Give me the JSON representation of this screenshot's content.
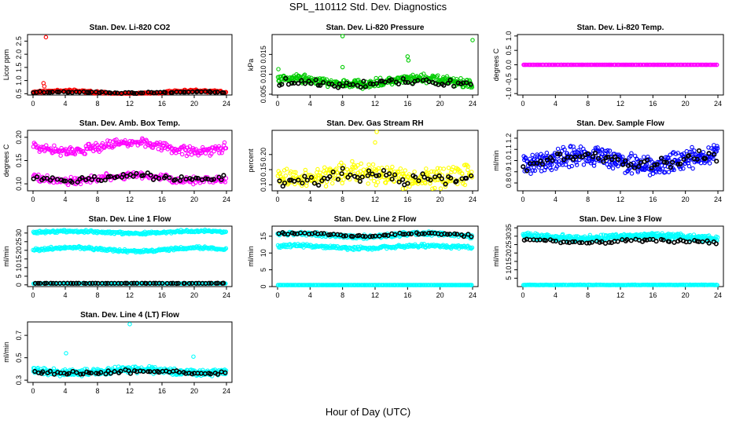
{
  "page_title": "SPL_110112  Std. Dev. Diagnostics",
  "x_axis_label": "Hour of Day (UTC)",
  "colors": {
    "black": "#000000",
    "red": "#ff0000",
    "green": "#00cc00",
    "magenta": "#ff00ff",
    "yellow": "#ffff00",
    "blue": "#0000ff",
    "cyan": "#00ffff"
  },
  "chart_data": [
    {
      "type": "scatter",
      "title": "Stan. Dev. Li-820 CO2",
      "ylabel": "Licor ppm",
      "xlim": [
        0,
        24
      ],
      "ylim": [
        0.45,
        2.75
      ],
      "xticks": [
        0,
        4,
        8,
        12,
        16,
        20,
        24
      ],
      "xtick_labels": [
        "0",
        "4",
        "8",
        "12",
        "16",
        "20",
        "24"
      ],
      "yticks": [
        0.5,
        1.0,
        1.5,
        2.0,
        2.5
      ],
      "ytick_labels": [
        "0.5",
        "1.0",
        "1.5",
        "2.0",
        "2.5"
      ],
      "series": [
        {
          "name": "all",
          "color": "red",
          "dense": {
            "n": 260,
            "base": 0.55,
            "amp": 0.06,
            "spread": 0.05
          },
          "points": [
            [
              1.2,
              0.6
            ],
            [
              1.3,
              0.9
            ],
            [
              1.4,
              0.78
            ],
            [
              1.6,
              2.65
            ],
            [
              1.8,
              0.58
            ]
          ]
        },
        {
          "name": "hourly",
          "color": "black",
          "dense": {
            "n": 60,
            "base": 0.55,
            "amp": 0.02,
            "spread": 0.03
          }
        }
      ]
    },
    {
      "type": "scatter",
      "title": "Stan. Dev. Li-820 Pressure",
      "ylabel": "kPa",
      "xlim": [
        0,
        24
      ],
      "ylim": [
        0.0048,
        0.02
      ],
      "xticks": [
        0,
        4,
        8,
        12,
        16,
        20,
        24
      ],
      "xtick_labels": [
        "0",
        "4",
        "8",
        "12",
        "16",
        "20",
        "24"
      ],
      "yticks": [
        0.005,
        0.01,
        0.015
      ],
      "ytick_labels": [
        "0.005",
        "0.010",
        "0.015"
      ],
      "series": [
        {
          "name": "all",
          "color": "green",
          "dense": {
            "n": 340,
            "base": 0.0082,
            "amp": 0.0007,
            "spread": 0.0013
          },
          "points": [
            [
              0.1,
              0.0113
            ],
            [
              8.0,
              0.0196
            ],
            [
              8.0,
              0.0118
            ],
            [
              16.0,
              0.0145
            ],
            [
              16.1,
              0.0135
            ],
            [
              24.0,
              0.0186
            ]
          ]
        },
        {
          "name": "hourly",
          "color": "black",
          "dense": {
            "n": 60,
            "base": 0.0078,
            "amp": 0.0004,
            "spread": 0.001
          }
        }
      ]
    },
    {
      "type": "scatter",
      "title": "Stan. Dev. Li-820 Temp.",
      "ylabel": "degrees C",
      "xlim": [
        0,
        24
      ],
      "ylim": [
        -1.05,
        1.05
      ],
      "xticks": [
        0,
        4,
        8,
        12,
        16,
        20,
        24
      ],
      "xtick_labels": [
        "0",
        "4",
        "8",
        "12",
        "16",
        "20",
        "24"
      ],
      "yticks": [
        -1.0,
        -0.5,
        0.0,
        0.5,
        1.0
      ],
      "ytick_labels": [
        "-1.0",
        "-0.5",
        "0.0",
        "0.5",
        "1.0"
      ],
      "series": [
        {
          "name": "all",
          "color": "magenta",
          "dense": {
            "n": 180,
            "base": 0.0,
            "amp": 0.0,
            "spread": 0.0
          }
        },
        {
          "name": "hourly",
          "color": "black",
          "dense": {
            "n": 0,
            "base": 0.0,
            "amp": 0.0,
            "spread": 0.0
          }
        }
      ]
    },
    {
      "type": "scatter",
      "title": "Stan. Dev. Amb. Box Temp.",
      "ylabel": "degrees C",
      "xlim": [
        0,
        24
      ],
      "ylim": [
        0.085,
        0.215
      ],
      "xticks": [
        0,
        4,
        8,
        12,
        16,
        20,
        24
      ],
      "xtick_labels": [
        "0",
        "4",
        "8",
        "12",
        "16",
        "20",
        "24"
      ],
      "yticks": [
        0.1,
        0.15,
        0.2
      ],
      "ytick_labels": [
        "0.10",
        "0.15",
        "0.20"
      ],
      "series": [
        {
          "name": "upper",
          "color": "magenta",
          "dense": {
            "n": 240,
            "base": 0.18,
            "amp": 0.01,
            "spread": 0.012
          }
        },
        {
          "name": "lower",
          "color": "magenta",
          "dense": {
            "n": 200,
            "base": 0.112,
            "amp": 0.006,
            "spread": 0.01
          }
        },
        {
          "name": "hourly",
          "color": "black",
          "dense": {
            "n": 60,
            "base": 0.113,
            "amp": 0.005,
            "spread": 0.008
          }
        }
      ]
    },
    {
      "type": "scatter",
      "title": "Stan. Dev. Gas Stream RH",
      "ylabel": "percent",
      "xlim": [
        0,
        24
      ],
      "ylim": [
        0.08,
        0.28
      ],
      "xticks": [
        0,
        4,
        8,
        12,
        16,
        20,
        24
      ],
      "xtick_labels": [
        "0",
        "4",
        "8",
        "12",
        "16",
        "20",
        "24"
      ],
      "yticks": [
        0.1,
        0.15,
        0.2
      ],
      "ytick_labels": [
        "0.10",
        "0.15",
        "0.20"
      ],
      "series": [
        {
          "name": "all",
          "color": "yellow",
          "dense": {
            "n": 300,
            "base": 0.13,
            "amp": 0.012,
            "spread": 0.04
          },
          "points": [
            [
              12.2,
              0.275
            ],
            [
              12.0,
              0.24
            ]
          ]
        },
        {
          "name": "hourly",
          "color": "black",
          "dense": {
            "n": 60,
            "base": 0.12,
            "amp": 0.01,
            "spread": 0.03
          }
        }
      ]
    },
    {
      "type": "scatter",
      "title": "Stan. Dev. Sample Flow",
      "ylabel": "ml/min",
      "xlim": [
        0,
        24
      ],
      "ylim": [
        0.73,
        1.27
      ],
      "xticks": [
        0,
        4,
        8,
        12,
        16,
        20,
        24
      ],
      "xtick_labels": [
        "0",
        "4",
        "8",
        "12",
        "16",
        "20",
        "24"
      ],
      "yticks": [
        0.8,
        0.9,
        1.0,
        1.1,
        1.2
      ],
      "ytick_labels": [
        "0.8",
        "0.9",
        "1.0",
        "1.1",
        "1.2"
      ],
      "series": [
        {
          "name": "all",
          "color": "blue",
          "dense": {
            "n": 380,
            "base": 1.0,
            "amp": 0.05,
            "spread": 0.11
          }
        },
        {
          "name": "hourly",
          "color": "black",
          "dense": {
            "n": 60,
            "base": 1.0,
            "amp": 0.04,
            "spread": 0.06
          }
        }
      ]
    },
    {
      "type": "scatter",
      "title": "Stan. Dev. Line 1 Flow",
      "ylabel": "ml/min",
      "xlim": [
        0,
        24
      ],
      "ylim": [
        -1,
        34
      ],
      "xticks": [
        0,
        4,
        8,
        12,
        16,
        20,
        24
      ],
      "xtick_labels": [
        "0",
        "4",
        "8",
        "12",
        "16",
        "20",
        "24"
      ],
      "yticks": [
        0,
        5,
        10,
        15,
        20,
        25,
        30
      ],
      "ytick_labels": [
        "0",
        "5",
        "10",
        "15",
        "20",
        "25",
        "30"
      ],
      "series": [
        {
          "name": "upper",
          "color": "cyan",
          "dense": {
            "n": 240,
            "base": 30.5,
            "amp": 0.6,
            "spread": 0.9
          }
        },
        {
          "name": "middle",
          "color": "cyan",
          "dense": {
            "n": 240,
            "base": 20.5,
            "amp": 1.0,
            "spread": 1.0
          }
        },
        {
          "name": "zero",
          "color": "cyan",
          "dense": {
            "n": 200,
            "base": 0.8,
            "amp": 0.0,
            "spread": 0.15
          }
        },
        {
          "name": "hourly",
          "color": "black",
          "dense": {
            "n": 60,
            "base": 0.9,
            "amp": 0.0,
            "spread": 0.1
          }
        }
      ]
    },
    {
      "type": "scatter",
      "title": "Stan. Dev. Line 2 Flow",
      "ylabel": "ml/min",
      "xlim": [
        0,
        24
      ],
      "ylim": [
        0,
        18
      ],
      "xticks": [
        0,
        4,
        8,
        12,
        16,
        20,
        24
      ],
      "xtick_labels": [
        "0",
        "4",
        "8",
        "12",
        "16",
        "20",
        "24"
      ],
      "yticks": [
        0,
        5,
        10,
        15
      ],
      "ytick_labels": [
        "0",
        "5",
        "10",
        "15"
      ],
      "series": [
        {
          "name": "upper",
          "color": "cyan",
          "dense": {
            "n": 240,
            "base": 15.3,
            "amp": 0.5,
            "spread": 0.7
          }
        },
        {
          "name": "middle",
          "color": "cyan",
          "dense": {
            "n": 240,
            "base": 11.8,
            "amp": 0.4,
            "spread": 0.6
          }
        },
        {
          "name": "zero",
          "color": "cyan",
          "dense": {
            "n": 200,
            "base": 0.4,
            "amp": 0.0,
            "spread": 0.1
          }
        },
        {
          "name": "hourly",
          "color": "black",
          "dense": {
            "n": 60,
            "base": 15.5,
            "amp": 0.4,
            "spread": 0.5
          }
        }
      ]
    },
    {
      "type": "scatter",
      "title": "Stan. Dev. Line 3 Flow",
      "ylabel": "ml/min",
      "xlim": [
        0,
        24
      ],
      "ylim": [
        0,
        36
      ],
      "xticks": [
        0,
        4,
        8,
        12,
        16,
        20,
        24
      ],
      "xtick_labels": [
        "0",
        "4",
        "8",
        "12",
        "16",
        "20",
        "24"
      ],
      "yticks": [
        5,
        10,
        15,
        20,
        25,
        30,
        35
      ],
      "ytick_labels": [
        "5",
        "10",
        "15",
        "20",
        "25",
        "30",
        "35"
      ],
      "series": [
        {
          "name": "band",
          "color": "cyan",
          "dense": {
            "n": 380,
            "base": 29.5,
            "amp": 0.7,
            "spread": 2.2
          }
        },
        {
          "name": "zero",
          "color": "cyan",
          "dense": {
            "n": 200,
            "base": 1.0,
            "amp": 0.0,
            "spread": 0.2
          }
        },
        {
          "name": "hourly",
          "color": "black",
          "dense": {
            "n": 60,
            "base": 27.0,
            "amp": 0.7,
            "spread": 1.2
          }
        }
      ]
    },
    {
      "type": "scatter",
      "title": "Stan. Dev. Line 4 (LT) Flow",
      "ylabel": "ml/min",
      "xlim": [
        0,
        24
      ],
      "ylim": [
        0.28,
        0.82
      ],
      "xticks": [
        0,
        4,
        8,
        12,
        16,
        20,
        24
      ],
      "xtick_labels": [
        "0",
        "4",
        "8",
        "12",
        "16",
        "20",
        "24"
      ],
      "yticks": [
        0.3,
        0.5,
        0.7
      ],
      "ytick_labels": [
        "0.3",
        "0.5",
        "0.7"
      ],
      "series": [
        {
          "name": "all",
          "color": "cyan",
          "dense": {
            "n": 360,
            "base": 0.38,
            "amp": 0.015,
            "spread": 0.035
          },
          "points": [
            [
              4.1,
              0.54
            ],
            [
              12.0,
              0.8
            ],
            [
              19.9,
              0.51
            ]
          ]
        },
        {
          "name": "hourly",
          "color": "black",
          "dense": {
            "n": 60,
            "base": 0.37,
            "amp": 0.01,
            "spread": 0.02
          }
        }
      ]
    }
  ]
}
